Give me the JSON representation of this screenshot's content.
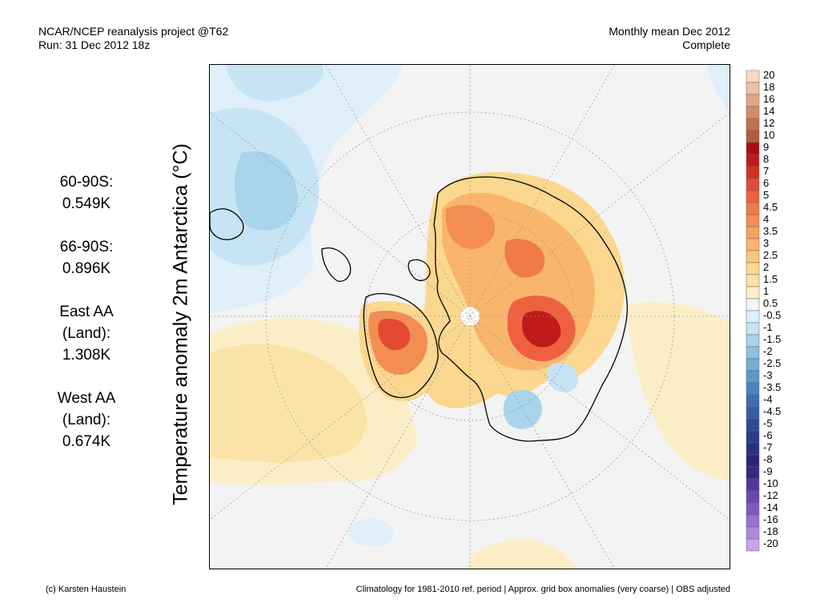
{
  "header": {
    "left_line1": "NCAR/NCEP reanalysis project @T62",
    "left_line2": "Run: 31 Dec 2012 18z",
    "right_line1": "Monthly mean Dec 2012",
    "right_line2": "Complete"
  },
  "y_axis_label": "Temperature anomaly 2m Antarctica (°C)",
  "stats": [
    {
      "label": "60-90S:",
      "value": "0.549K"
    },
    {
      "label": "66-90S:",
      "value": "0.896K"
    },
    {
      "label": "East AA (Land):",
      "value": "1.308K"
    },
    {
      "label": "West AA (Land):",
      "value": "0.674K"
    }
  ],
  "colorbar": {
    "labels": [
      "20",
      "18",
      "16",
      "14",
      "12",
      "10",
      "9",
      "8",
      "7",
      "6",
      "5",
      "4.5",
      "4",
      "3.5",
      "3",
      "2.5",
      "2",
      "1.5",
      "1",
      "0.5",
      "-0.5",
      "-1",
      "-1.5",
      "-2",
      "-2.5",
      "-3",
      "-3.5",
      "-4",
      "-4.5",
      "-5",
      "-6",
      "-7",
      "-8",
      "-9",
      "-10",
      "-12",
      "-14",
      "-16",
      "-18",
      "-20"
    ],
    "colors": [
      "#fbd7c6",
      "#f0bfa4",
      "#e3a585",
      "#d48b68",
      "#c4704e",
      "#b55a3a",
      "#a50f15",
      "#c11a1a",
      "#d7301f",
      "#e34a33",
      "#ee6040",
      "#f17a48",
      "#f58d52",
      "#f8a25d",
      "#f9b56b",
      "#fac77c",
      "#fbd78f",
      "#fbe3a8",
      "#fbeec7",
      "#f5f5f5",
      "#deeffa",
      "#c6e4f4",
      "#a8d4ec",
      "#8cc1e0",
      "#74add6",
      "#5f99cb",
      "#4d84bf",
      "#3e6fb2",
      "#335ca5",
      "#2b4a97",
      "#2a3c8c",
      "#2b2f80",
      "#2d2276",
      "#3b2683",
      "#54369a",
      "#6a47ad",
      "#805ac0",
      "#9870d1",
      "#ae88e0",
      "#c6a6ee"
    ],
    "accent_colors": {
      "warm": "#e34a33",
      "cool": "#74add6",
      "land_outline": "#000000"
    }
  },
  "footer": {
    "left": "(c) Karsten Haustein",
    "right": "Climatology for 1981-2010 ref. period | Approx. grid box anomalies (very coarse) | OBS adjusted"
  }
}
